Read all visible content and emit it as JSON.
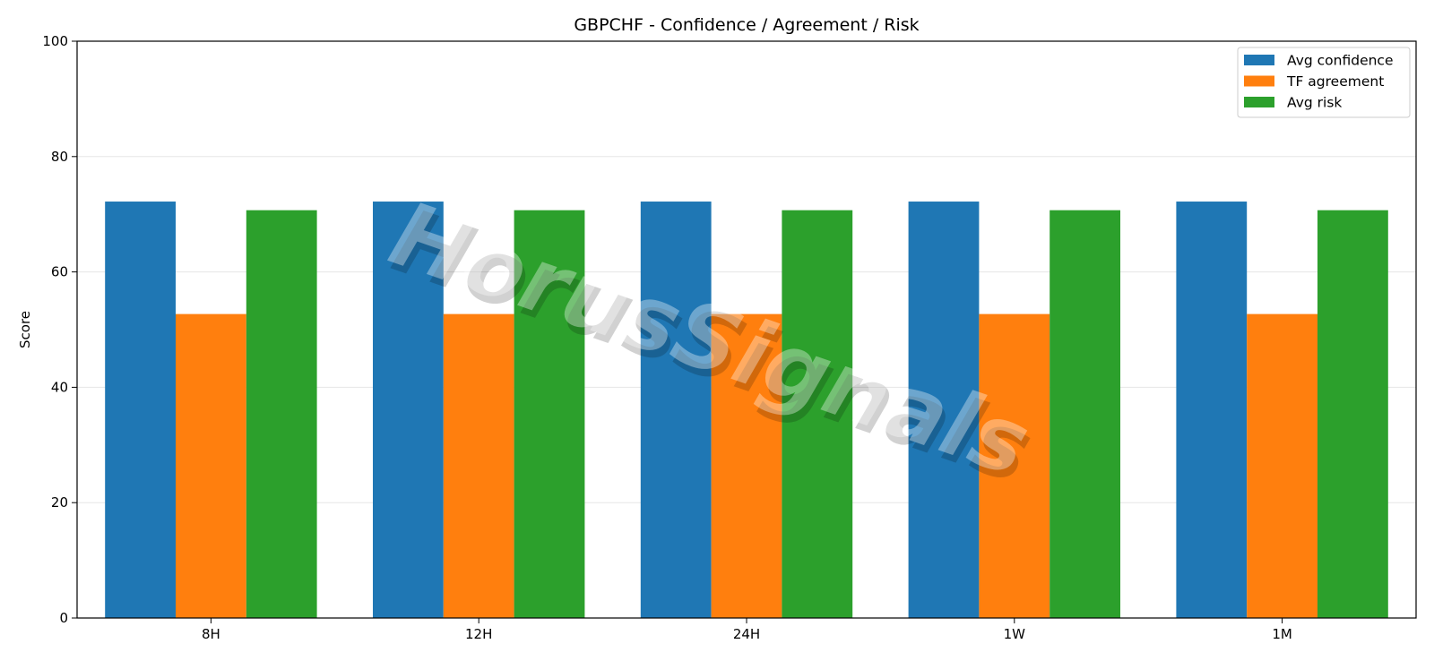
{
  "chart_data": {
    "type": "bar",
    "title": "GBPCHF - Confidence / Agreement / Risk",
    "xlabel": "",
    "ylabel": "Score",
    "ylim": [
      0,
      100
    ],
    "yticks": [
      0,
      20,
      40,
      60,
      80,
      100
    ],
    "categories": [
      "8H",
      "12H",
      "24H",
      "1W",
      "1M"
    ],
    "series": [
      {
        "name": "Avg confidence",
        "color": "#1f77b4",
        "values": [
          72.2,
          72.2,
          72.2,
          72.2,
          72.2
        ]
      },
      {
        "name": "TF agreement",
        "color": "#ff7f0e",
        "values": [
          52.7,
          52.7,
          52.7,
          52.7,
          52.7
        ]
      },
      {
        "name": "Avg risk",
        "color": "#2ca02c",
        "values": [
          70.7,
          70.7,
          70.7,
          70.7,
          70.7
        ]
      }
    ],
    "grid": "horizontal",
    "legend": "top-right",
    "watermark": "HorusSignals"
  }
}
